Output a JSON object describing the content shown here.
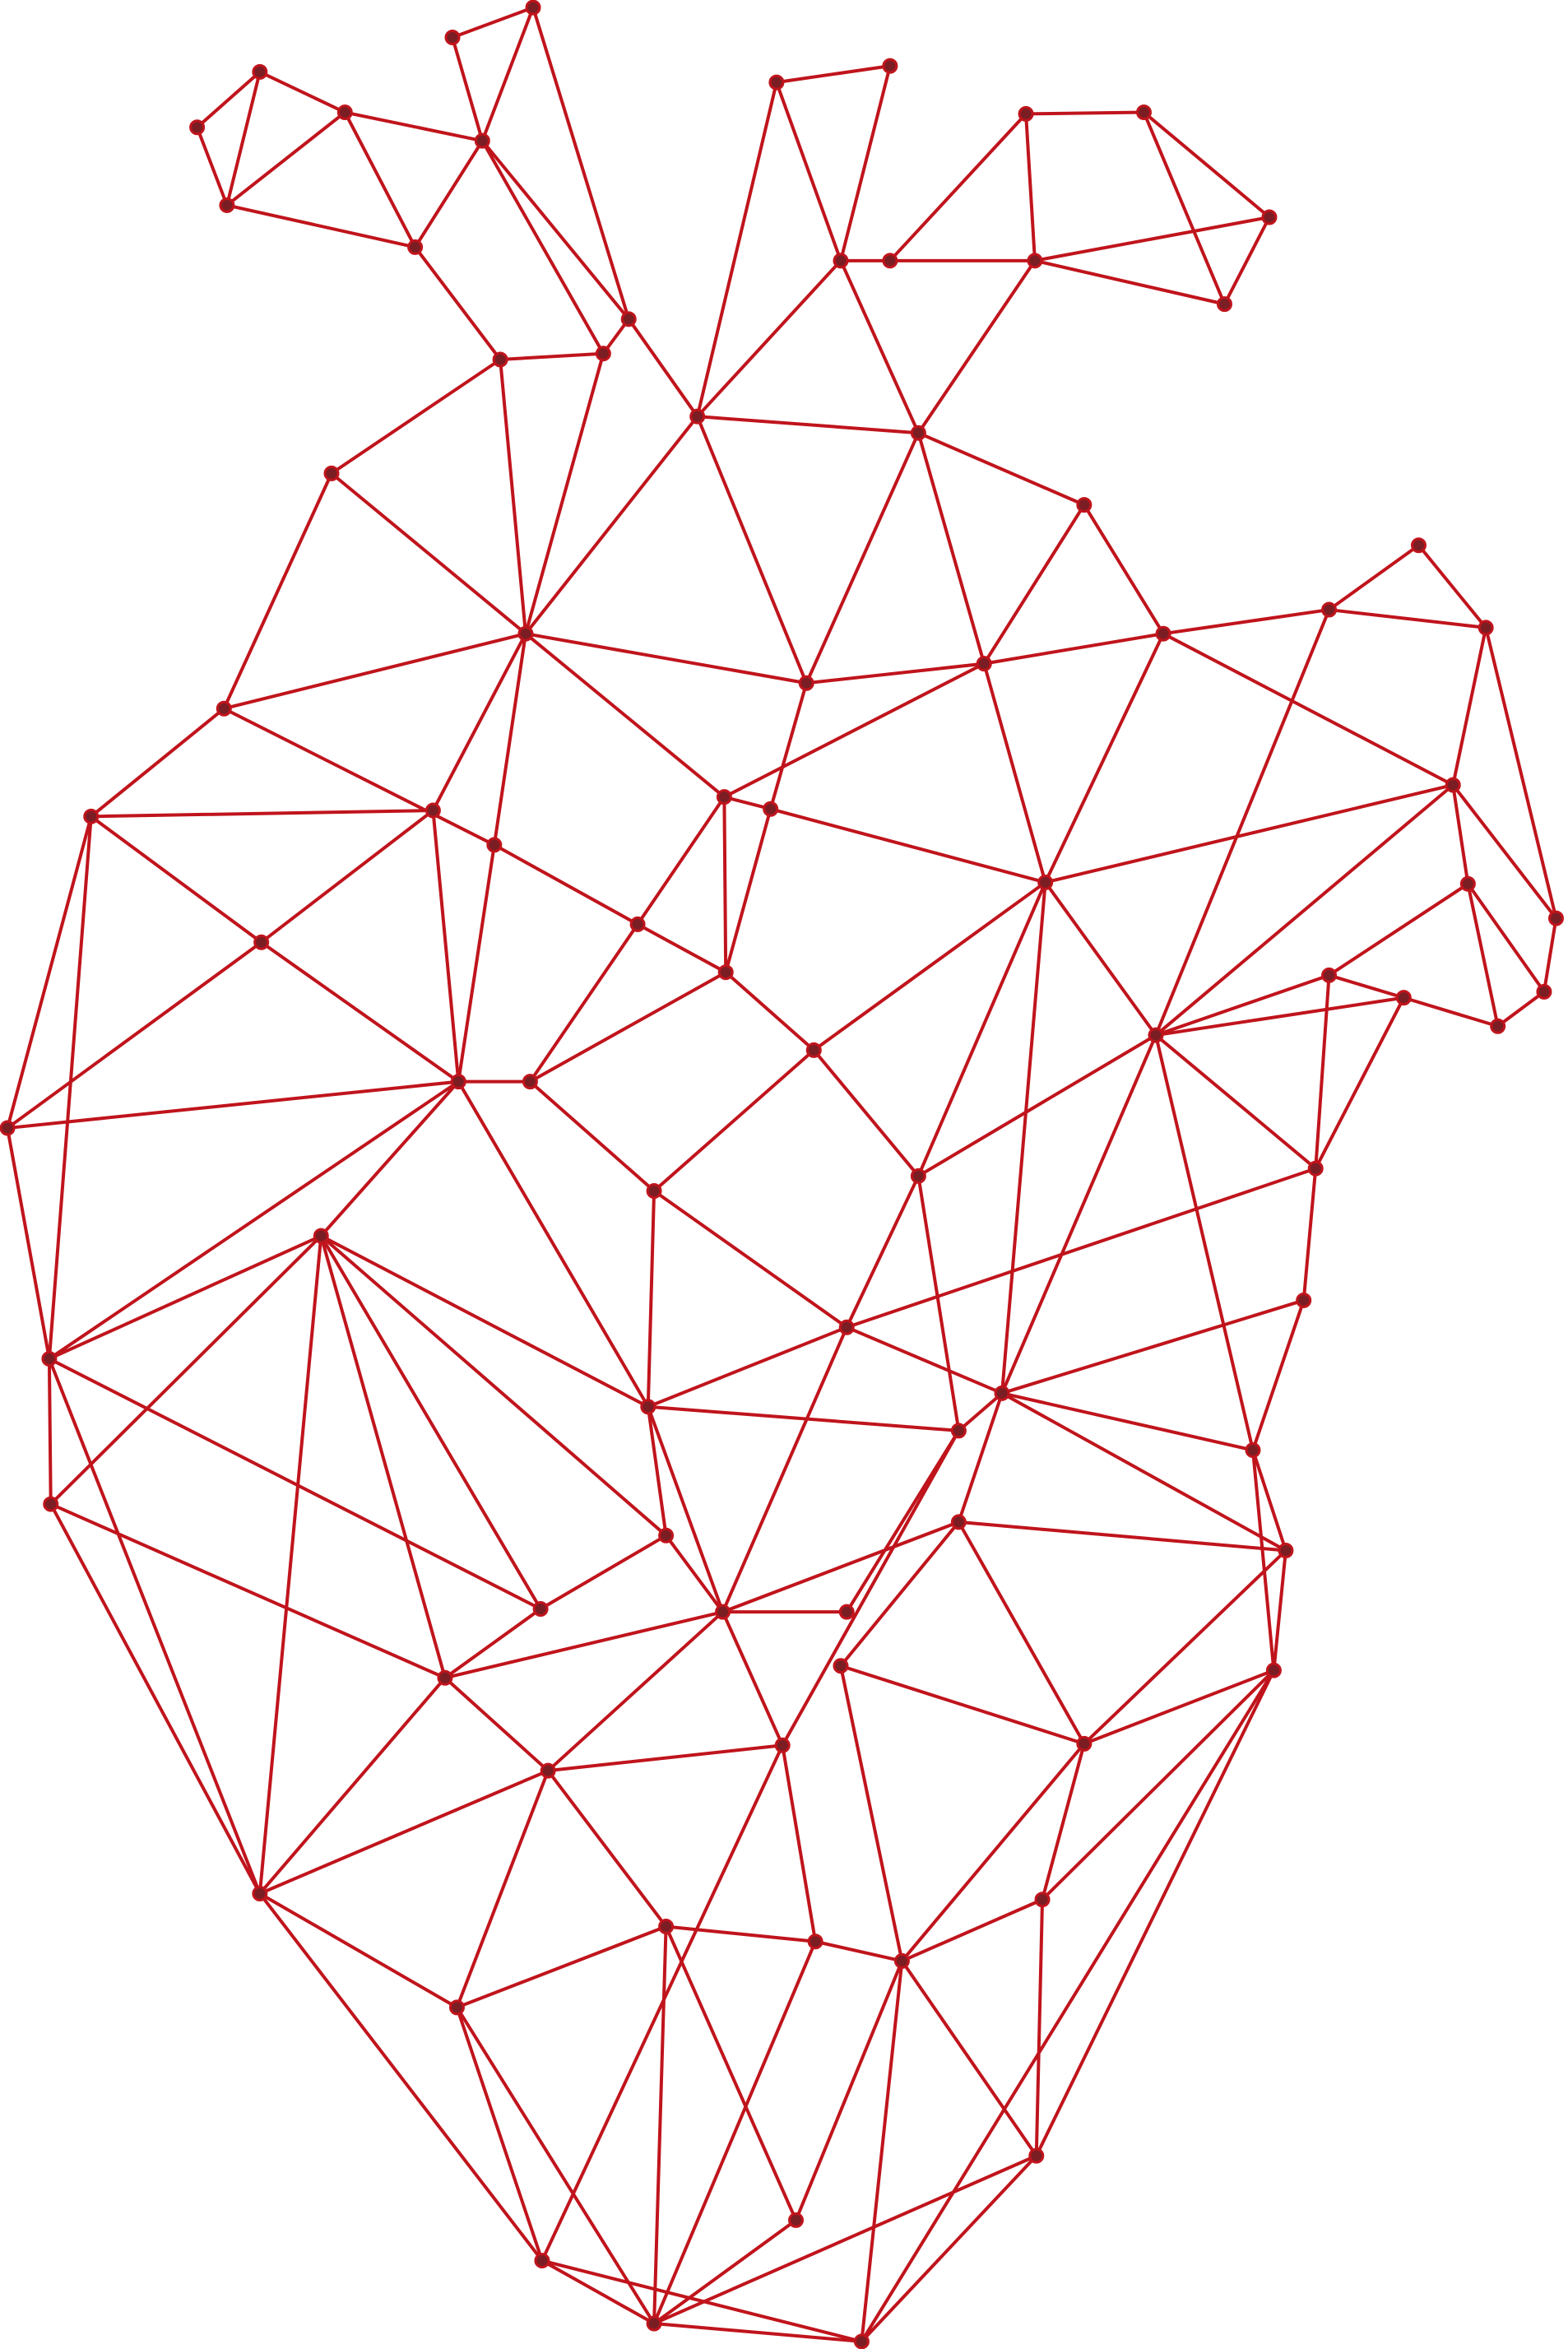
{
  "illustration": {
    "subject": "low-poly-anatomical-heart",
    "colors": {
      "line": "#c0141c",
      "node_fill": "#7a1e24",
      "node_stroke": "#c0141c",
      "background": "#ffffff"
    }
  }
}
